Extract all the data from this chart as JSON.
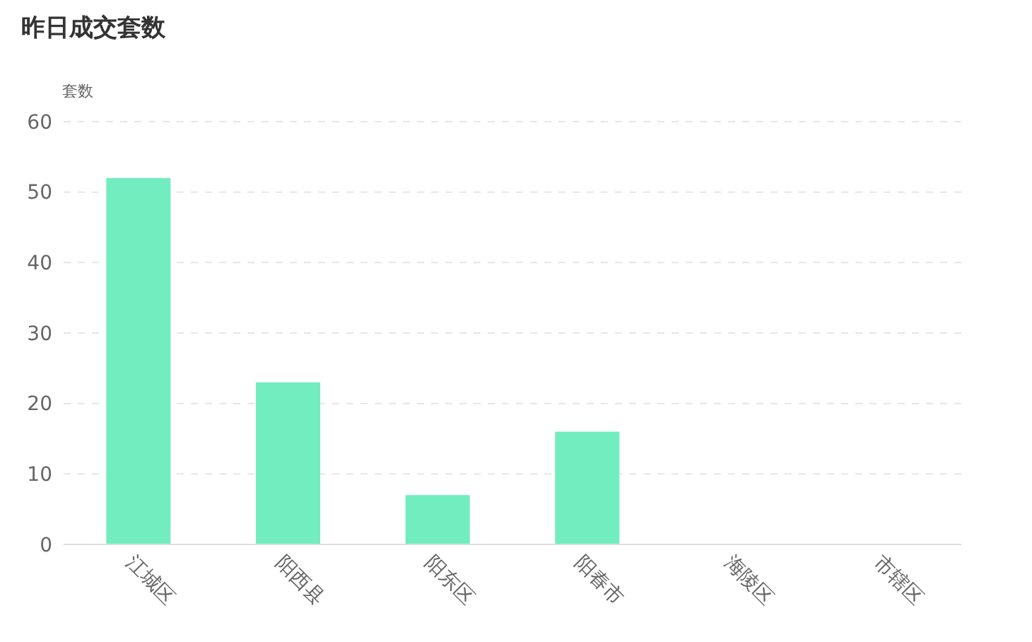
{
  "chart_data": {
    "type": "bar",
    "title": "昨日成交套数",
    "ylabel": "套数",
    "categories": [
      "江城区",
      "阳西县",
      "阳东区",
      "阳春市",
      "海陵区",
      "市辖区"
    ],
    "values": [
      52,
      23,
      7,
      16,
      0,
      0
    ],
    "color": "#72edbf",
    "ylim": [
      0,
      60
    ],
    "yticks": [
      0,
      10,
      20,
      30,
      40,
      50,
      60
    ],
    "grid": "y"
  }
}
